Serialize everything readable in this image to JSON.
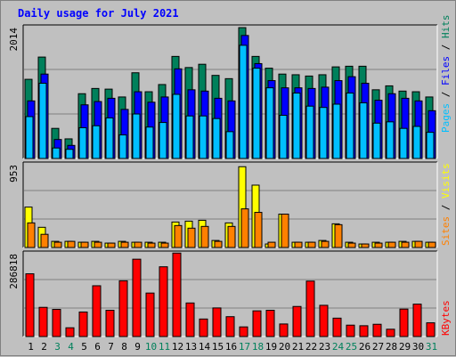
{
  "chart_title": "Daily usage for July 2021",
  "colors": {
    "background": "#c0c0c0",
    "plot_bg": "#c0c0c0",
    "hits": "#00805b",
    "files": "#0000ff",
    "pages": "#00bfff",
    "visits": "#ffff00",
    "sites": "#ff8000",
    "kbytes": "#ff0000",
    "weekend_label": "#00805b",
    "weekday_label": "#000000"
  },
  "chart_data": [
    {
      "type": "bar",
      "panel": "hits_files_pages",
      "y_max_label": "2014",
      "ylim": [
        0,
        2014
      ],
      "legend": [
        "Pages",
        "Files",
        "Hits"
      ],
      "categories": [
        "1",
        "2",
        "3",
        "4",
        "5",
        "6",
        "7",
        "8",
        "9",
        "10",
        "11",
        "12",
        "13",
        "14",
        "15",
        "16",
        "17",
        "18",
        "19",
        "20",
        "21",
        "22",
        "23",
        "24",
        "25",
        "26",
        "27",
        "28",
        "29",
        "30",
        "31"
      ],
      "series": [
        {
          "name": "Hits",
          "values": [
            1210,
            1550,
            460,
            300,
            990,
            1070,
            1060,
            940,
            1310,
            1020,
            1130,
            1560,
            1390,
            1440,
            1270,
            1220,
            2000,
            1560,
            1380,
            1290,
            1280,
            1260,
            1280,
            1400,
            1410,
            1410,
            1050,
            1110,
            1030,
            1020,
            940
          ]
        },
        {
          "name": "Files",
          "values": [
            880,
            1290,
            290,
            200,
            820,
            870,
            920,
            750,
            1020,
            860,
            940,
            1370,
            1050,
            1030,
            920,
            880,
            1880,
            1450,
            1190,
            1080,
            1080,
            1070,
            1090,
            1190,
            1250,
            1150,
            890,
            990,
            920,
            880,
            730
          ]
        },
        {
          "name": "Pages",
          "values": [
            640,
            1150,
            160,
            140,
            470,
            500,
            620,
            360,
            680,
            480,
            550,
            980,
            650,
            650,
            610,
            410,
            1730,
            1380,
            1080,
            660,
            1000,
            800,
            780,
            830,
            1000,
            850,
            540,
            560,
            460,
            490,
            400
          ]
        }
      ]
    },
    {
      "type": "bar",
      "panel": "visits_sites",
      "y_max_label": "953",
      "ylim": [
        0,
        953
      ],
      "legend": [
        "Sites",
        "Visits"
      ],
      "categories": [
        "1",
        "2",
        "3",
        "4",
        "5",
        "6",
        "7",
        "8",
        "9",
        "10",
        "11",
        "12",
        "13",
        "14",
        "15",
        "16",
        "17",
        "18",
        "19",
        "20",
        "21",
        "22",
        "23",
        "24",
        "25",
        "26",
        "27",
        "28",
        "29",
        "30",
        "31"
      ],
      "series": [
        {
          "name": "Visits",
          "values": [
            460,
            230,
            70,
            70,
            60,
            70,
            50,
            70,
            60,
            60,
            60,
            290,
            300,
            310,
            80,
            280,
            920,
            710,
            40,
            380,
            60,
            60,
            80,
            270,
            60,
            40,
            60,
            60,
            70,
            70,
            60
          ]
        },
        {
          "name": "Sites",
          "values": [
            280,
            150,
            60,
            70,
            60,
            60,
            50,
            60,
            60,
            50,
            50,
            250,
            220,
            240,
            70,
            240,
            440,
            400,
            60,
            380,
            60,
            60,
            70,
            260,
            50,
            40,
            50,
            60,
            60,
            70,
            60
          ]
        }
      ]
    },
    {
      "type": "bar",
      "panel": "kbytes",
      "y_max_label": "286818",
      "ylim": [
        0,
        286818
      ],
      "legend": [
        "KBytes"
      ],
      "categories": [
        "1",
        "2",
        "3",
        "4",
        "5",
        "6",
        "7",
        "8",
        "9",
        "10",
        "11",
        "12",
        "13",
        "14",
        "15",
        "16",
        "17",
        "18",
        "19",
        "20",
        "21",
        "22",
        "23",
        "24",
        "25",
        "26",
        "27",
        "28",
        "29",
        "30",
        "31"
      ],
      "series": [
        {
          "name": "KBytes",
          "values": [
            215000,
            100000,
            93000,
            30000,
            84000,
            174000,
            90000,
            191000,
            265000,
            149000,
            239000,
            286000,
            115000,
            60000,
            98000,
            68000,
            33000,
            88000,
            90000,
            43000,
            103000,
            190000,
            107000,
            63000,
            39000,
            37000,
            42000,
            25000,
            94000,
            111000,
            47000
          ]
        }
      ]
    }
  ],
  "weekend_days": [
    3,
    4,
    10,
    11,
    17,
    18,
    24,
    25,
    31
  ]
}
